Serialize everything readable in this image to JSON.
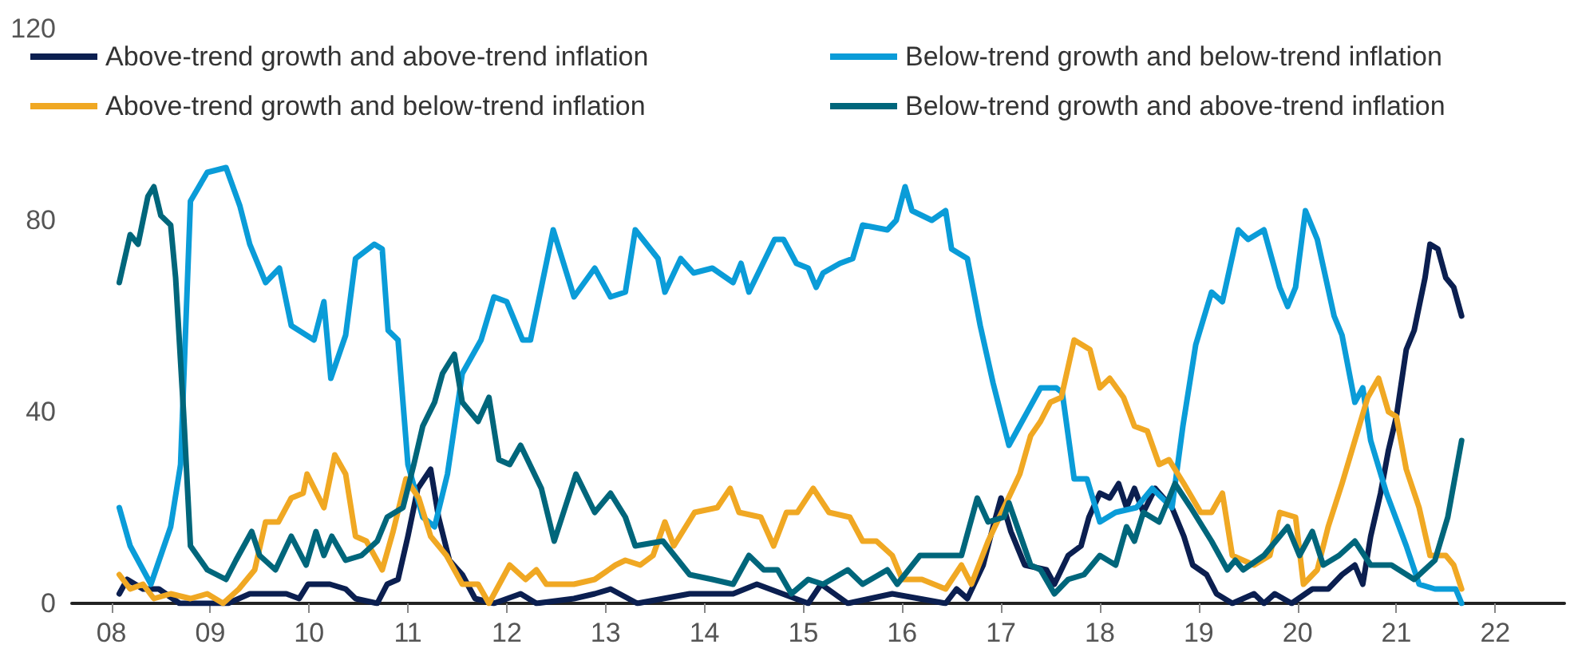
{
  "chart_data": {
    "type": "line",
    "xlim": [
      2007.6,
      2022.7
    ],
    "xticks": [
      {
        "value": 2008,
        "label": "08"
      },
      {
        "value": 2009,
        "label": "09"
      },
      {
        "value": 2010,
        "label": "10"
      },
      {
        "value": 2011,
        "label": "11"
      },
      {
        "value": 2012,
        "label": "12"
      },
      {
        "value": 2013,
        "label": "13"
      },
      {
        "value": 2014,
        "label": "14"
      },
      {
        "value": 2015,
        "label": "15"
      },
      {
        "value": 2016,
        "label": "16"
      },
      {
        "value": 2017,
        "label": "17"
      },
      {
        "value": 2018,
        "label": "18"
      },
      {
        "value": 2019,
        "label": "19"
      },
      {
        "value": 2020,
        "label": "20"
      },
      {
        "value": 2021,
        "label": "21"
      },
      {
        "value": 2022,
        "label": "22"
      }
    ],
    "ylim": [
      0,
      120
    ],
    "yticks": [
      0,
      40,
      80,
      120
    ],
    "grid": false,
    "legend": "top",
    "marker": "none",
    "line_style": "solid",
    "series": [
      {
        "name": "Above-trend growth and above-trend inflation",
        "color": "#0b1f50",
        "x": [
          2008.08,
          2008.16,
          2008.32,
          2008.48,
          2008.69,
          2008.92,
          2009.18,
          2009.4,
          2009.61,
          2009.77,
          2009.9,
          2009.99,
          2010.21,
          2010.37,
          2010.47,
          2010.69,
          2010.79,
          2010.9,
          2011.0,
          2011.1,
          2011.23,
          2011.31,
          2011.42,
          2011.55,
          2011.68,
          2011.87,
          2012.14,
          2012.3,
          2012.68,
          2012.89,
          2013.05,
          2013.32,
          2013.85,
          2014.29,
          2014.53,
          2015.05,
          2015.18,
          2015.45,
          2015.9,
          2016.44,
          2016.55,
          2016.66,
          2016.82,
          2016.92,
          2017.0,
          2017.1,
          2017.24,
          2017.46,
          2017.54,
          2017.68,
          2017.81,
          2017.89,
          2018.0,
          2018.1,
          2018.19,
          2018.27,
          2018.35,
          2018.44,
          2018.56,
          2018.73,
          2018.85,
          2018.94,
          2019.08,
          2019.18,
          2019.34,
          2019.56,
          2019.66,
          2019.77,
          2019.94,
          2020.15,
          2020.31,
          2020.45,
          2020.58,
          2020.66,
          2020.74,
          2020.84,
          2020.92,
          2021.0,
          2021.1,
          2021.18,
          2021.29,
          2021.34,
          2021.42,
          2021.5,
          2021.58,
          2021.66
        ],
        "values": [
          2,
          5,
          3,
          3,
          0,
          0,
          0,
          2,
          2,
          2,
          1,
          4,
          4,
          3,
          1,
          0,
          4,
          5,
          14,
          24,
          28,
          18,
          9,
          6,
          1,
          0,
          2,
          0,
          1,
          2,
          3,
          0,
          2,
          2,
          4,
          0,
          4,
          0,
          2,
          0,
          3,
          1,
          8,
          16,
          22,
          15,
          8,
          7,
          4,
          10,
          12,
          18,
          23,
          22,
          25,
          20,
          24,
          19,
          24,
          20,
          14,
          8,
          6,
          2,
          0,
          2,
          0,
          2,
          0,
          3,
          3,
          6,
          8,
          4,
          14,
          23,
          32,
          39,
          53,
          57,
          68,
          75,
          74,
          68,
          66,
          60
        ]
      },
      {
        "name": "Below-trend growth and below-trend inflation",
        "color": "#0a9cd8",
        "x": [
          2008.08,
          2008.19,
          2008.4,
          2008.6,
          2008.7,
          2008.8,
          2008.97,
          2009.16,
          2009.3,
          2009.4,
          2009.56,
          2009.7,
          2009.82,
          2010.05,
          2010.15,
          2010.22,
          2010.37,
          2010.47,
          2010.66,
          2010.74,
          2010.8,
          2010.9,
          2011.0,
          2011.15,
          2011.27,
          2011.4,
          2011.55,
          2011.74,
          2011.87,
          2012.0,
          2012.16,
          2012.24,
          2012.47,
          2012.68,
          2012.89,
          2013.05,
          2013.2,
          2013.3,
          2013.53,
          2013.6,
          2013.76,
          2013.89,
          2014.08,
          2014.29,
          2014.37,
          2014.45,
          2014.71,
          2014.8,
          2014.93,
          2015.05,
          2015.13,
          2015.2,
          2015.37,
          2015.5,
          2015.6,
          2015.85,
          2015.94,
          2016.03,
          2016.1,
          2016.3,
          2016.44,
          2016.5,
          2016.66,
          2016.79,
          2016.92,
          2017.08,
          2017.24,
          2017.4,
          2017.56,
          2017.62,
          2017.74,
          2017.87,
          2018.0,
          2018.16,
          2018.37,
          2018.53,
          2018.73,
          2018.84,
          2018.97,
          2019.13,
          2019.24,
          2019.4,
          2019.5,
          2019.66,
          2019.82,
          2019.9,
          2019.98,
          2020.08,
          2020.2,
          2020.37,
          2020.45,
          2020.58,
          2020.66,
          2020.74,
          2020.9,
          2021.1,
          2021.23,
          2021.39,
          2021.6,
          2021.66
        ],
        "values": [
          20,
          12,
          4,
          16,
          29,
          84,
          90,
          91,
          83,
          75,
          67,
          70,
          58,
          55,
          63,
          47,
          56,
          72,
          75,
          74,
          57,
          55,
          29,
          18,
          16,
          27,
          48,
          55,
          64,
          63,
          55,
          55,
          78,
          64,
          70,
          64,
          65,
          78,
          72,
          65,
          72,
          69,
          70,
          67,
          71,
          65,
          76,
          76,
          71,
          70,
          66,
          69,
          71,
          72,
          79,
          78,
          80,
          87,
          82,
          80,
          82,
          74,
          72,
          58,
          46,
          33,
          39,
          45,
          45,
          44,
          26,
          26,
          17,
          19,
          20,
          24,
          20,
          37,
          54,
          65,
          63,
          78,
          76,
          78,
          66,
          62,
          66,
          82,
          76,
          60,
          56,
          42,
          45,
          34,
          23,
          12,
          4,
          3,
          3,
          0
        ]
      },
      {
        "name": "Above-trend growth and below-trend inflation",
        "color": "#f0a823",
        "x": [
          2008.08,
          2008.19,
          2008.32,
          2008.43,
          2008.6,
          2008.8,
          2008.97,
          2009.13,
          2009.29,
          2009.45,
          2009.56,
          2009.69,
          2009.82,
          2009.94,
          2009.98,
          2010.15,
          2010.26,
          2010.37,
          2010.47,
          2010.58,
          2010.74,
          2010.85,
          2010.98,
          2011.11,
          2011.23,
          2011.39,
          2011.55,
          2011.71,
          2011.82,
          2012.03,
          2012.19,
          2012.3,
          2012.4,
          2012.68,
          2012.89,
          2013.1,
          2013.2,
          2013.35,
          2013.48,
          2013.6,
          2013.69,
          2013.9,
          2014.13,
          2014.26,
          2014.35,
          2014.57,
          2014.7,
          2014.83,
          2014.94,
          2015.1,
          2015.26,
          2015.47,
          2015.6,
          2015.74,
          2015.9,
          2016.0,
          2016.2,
          2016.44,
          2016.6,
          2016.7,
          2016.87,
          2017.03,
          2017.19,
          2017.3,
          2017.4,
          2017.5,
          2017.61,
          2017.74,
          2017.9,
          2018.0,
          2018.1,
          2018.24,
          2018.35,
          2018.48,
          2018.6,
          2018.7,
          2018.85,
          2019.02,
          2019.13,
          2019.24,
          2019.34,
          2019.56,
          2019.72,
          2019.82,
          2019.98,
          2020.06,
          2020.2,
          2020.31,
          2020.45,
          2020.58,
          2020.71,
          2020.82,
          2020.92,
          2021.0,
          2021.1,
          2021.23,
          2021.34,
          2021.5,
          2021.58,
          2021.66
        ],
        "values": [
          6,
          3,
          4,
          1,
          2,
          1,
          2,
          0,
          3,
          7,
          17,
          17,
          22,
          23,
          27,
          20,
          31,
          27,
          14,
          13,
          7,
          15,
          26,
          22,
          14,
          10,
          4,
          4,
          0,
          8,
          5,
          7,
          4,
          4,
          5,
          8,
          9,
          8,
          10,
          17,
          12,
          19,
          20,
          24,
          19,
          18,
          12,
          19,
          19,
          24,
          19,
          18,
          13,
          13,
          10,
          5,
          5,
          3,
          8,
          4,
          13,
          20,
          27,
          35,
          38,
          42,
          43,
          55,
          53,
          45,
          47,
          43,
          37,
          36,
          29,
          30,
          25,
          19,
          19,
          23,
          10,
          8,
          10,
          19,
          18,
          4,
          7,
          16,
          25,
          34,
          43,
          47,
          40,
          39,
          28,
          20,
          10,
          10,
          8,
          3
        ]
      },
      {
        "name": "Below-trend growth and above-trend inflation",
        "color": "#00667b",
        "x": [
          2008.08,
          2008.19,
          2008.27,
          2008.37,
          2008.43,
          2008.5,
          2008.6,
          2008.65,
          2008.73,
          2008.8,
          2008.97,
          2009.16,
          2009.26,
          2009.42,
          2009.5,
          2009.66,
          2009.82,
          2009.97,
          2010.07,
          2010.15,
          2010.23,
          2010.37,
          2010.53,
          2010.69,
          2010.79,
          2010.95,
          2011.06,
          2011.15,
          2011.27,
          2011.35,
          2011.47,
          2011.55,
          2011.71,
          2011.82,
          2011.92,
          2012.03,
          2012.14,
          2012.35,
          2012.48,
          2012.7,
          2012.89,
          2013.05,
          2013.2,
          2013.3,
          2013.58,
          2013.85,
          2014.08,
          2014.29,
          2014.45,
          2014.6,
          2014.74,
          2014.88,
          2015.05,
          2015.2,
          2015.45,
          2015.6,
          2015.85,
          2015.95,
          2016.18,
          2016.44,
          2016.6,
          2016.76,
          2016.87,
          2017.03,
          2017.08,
          2017.3,
          2017.4,
          2017.54,
          2017.68,
          2017.84,
          2018.0,
          2018.16,
          2018.27,
          2018.35,
          2018.44,
          2018.6,
          2018.76,
          2018.92,
          2019.13,
          2019.29,
          2019.37,
          2019.45,
          2019.66,
          2019.9,
          2020.02,
          2020.15,
          2020.26,
          2020.42,
          2020.58,
          2020.74,
          2020.95,
          2021.18,
          2021.39,
          2021.52,
          2021.66
        ],
        "values": [
          67,
          77,
          75,
          85,
          87,
          81,
          79,
          68,
          40,
          12,
          7,
          5,
          9,
          15,
          10,
          7,
          14,
          8,
          15,
          10,
          14,
          9,
          10,
          13,
          18,
          20,
          29,
          37,
          42,
          48,
          52,
          42,
          38,
          43,
          30,
          29,
          33,
          24,
          13,
          27,
          19,
          23,
          18,
          12,
          13,
          6,
          5,
          4,
          10,
          7,
          7,
          2,
          5,
          4,
          7,
          4,
          7,
          4,
          10,
          10,
          10,
          22,
          17,
          18,
          21,
          8,
          7,
          2,
          5,
          6,
          10,
          8,
          16,
          13,
          19,
          17,
          25,
          20,
          13,
          7,
          9,
          7,
          10,
          16,
          10,
          15,
          8,
          10,
          13,
          8,
          8,
          5,
          9,
          18,
          34
        ]
      }
    ]
  }
}
